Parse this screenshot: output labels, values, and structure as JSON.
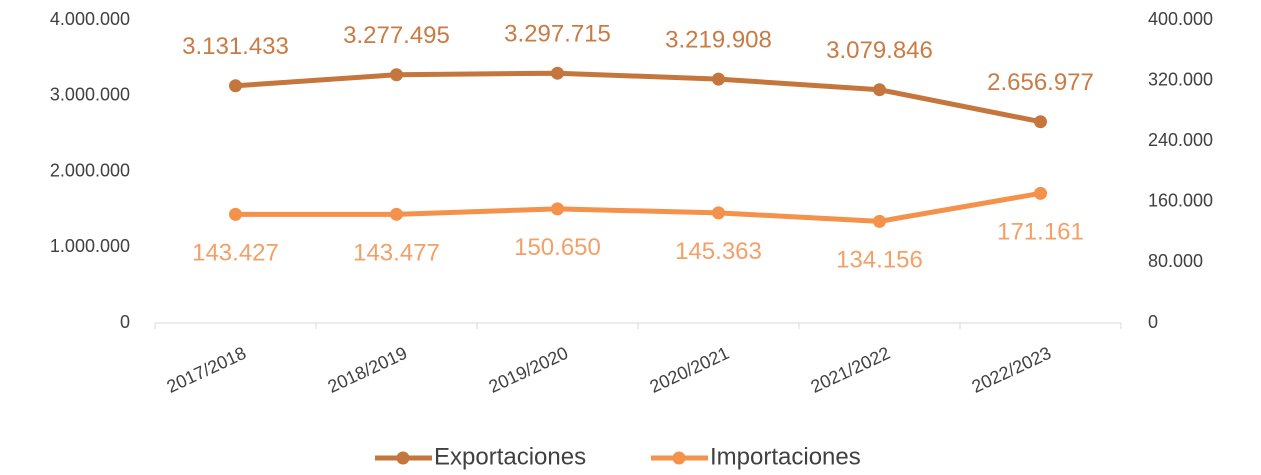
{
  "chart_data": {
    "type": "line",
    "categories": [
      "2017/2018",
      "2018/2019",
      "2019/2020",
      "2020/2021",
      "2021/2022",
      "2022/2023"
    ],
    "series": [
      {
        "name": "Exportaciones",
        "color": "#c5763d",
        "values": [
          3131433,
          3277495,
          3297715,
          3219908,
          3079846,
          2656977
        ],
        "value_labels": [
          "3.131.433",
          "3.277.495",
          "3.297.715",
          "3.219.908",
          "3.079.846",
          "2.656.977"
        ]
      },
      {
        "name": "Importaciones",
        "color": "#f4914a",
        "axis": "y2",
        "values": [
          143427,
          143477,
          150650,
          145363,
          134156,
          171161
        ],
        "value_labels": [
          "143.427",
          "143.477",
          "150.650",
          "145.363",
          "134.156",
          "171.161"
        ]
      }
    ],
    "ylim": [
      0,
      4000000
    ],
    "yticks": [
      0,
      {
        "value": 1000000,
        "label": "1.000.000"
      },
      {
        "value": 2000000,
        "label": "2.000.000"
      },
      {
        "value": 3000000,
        "label": "3.000.000"
      },
      {
        "value": 4000000,
        "label": "4.000.000"
      }
    ],
    "y2lim": [
      0,
      400000
    ],
    "y2ticks": [
      0,
      {
        "value": 80000,
        "label": "80.000"
      },
      {
        "value": 160000,
        "label": "160.000"
      },
      {
        "value": 240000,
        "label": "240.000"
      },
      {
        "value": 320000,
        "label": "320.000"
      },
      {
        "value": 400000,
        "label": "400.000"
      }
    ],
    "grid": false,
    "legend": "bottom"
  }
}
